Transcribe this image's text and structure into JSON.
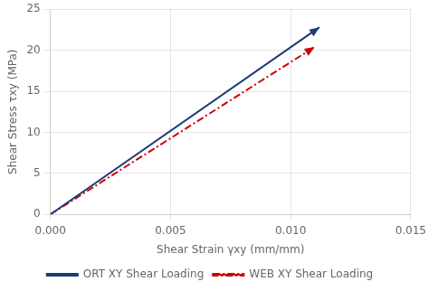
{
  "chart_data": {
    "type": "line",
    "xlabel": "Shear Strain γxy (mm/mm)",
    "ylabel": "Shear Stress τxy (MPa)",
    "xlim": [
      0.0,
      0.015
    ],
    "ylim": [
      0,
      25
    ],
    "xticks": [
      {
        "value": 0.0,
        "label": "0.000"
      },
      {
        "value": 0.005,
        "label": "0.005"
      },
      {
        "value": 0.01,
        "label": "0.010"
      },
      {
        "value": 0.015,
        "label": "0.015"
      }
    ],
    "yticks": [
      0,
      5,
      10,
      15,
      20,
      25
    ],
    "grid": true,
    "legend": "bottom",
    "series": [
      {
        "name": "ORT XY Shear Loading",
        "color": "#1e3a78",
        "line_style": "solid",
        "marker": "arrow",
        "x": [
          0.0,
          0.0112
        ],
        "values": [
          0.0,
          22.8
        ]
      },
      {
        "name": "WEB XY Shear Loading",
        "color": "#cc0000",
        "line_style": "dashdot",
        "marker": "arrow",
        "x": [
          0.0,
          0.011
        ],
        "values": [
          0.0,
          20.4
        ]
      }
    ]
  }
}
